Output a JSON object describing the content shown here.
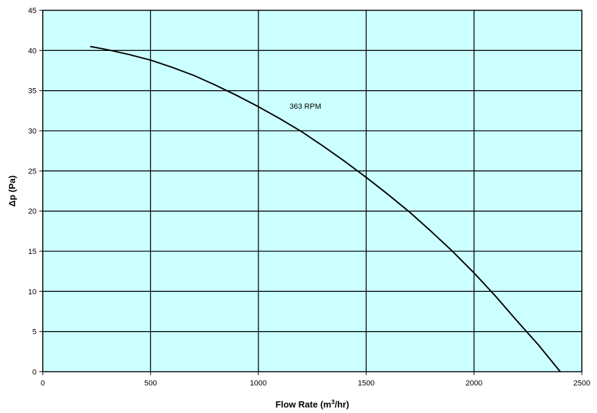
{
  "chart_data": {
    "type": "line",
    "xlabel": "Flow Rate (m³/hr)",
    "ylabel": "Δp (Pa)",
    "xlim": [
      0,
      2500
    ],
    "ylim": [
      0,
      45
    ],
    "x_ticks": [
      "0",
      "500",
      "1000",
      "1500",
      "2000",
      "2500"
    ],
    "y_ticks": [
      "0",
      "5",
      "10",
      "15",
      "20",
      "25",
      "30",
      "35",
      "40",
      "45"
    ],
    "grid": true,
    "annotation": "363 RPM",
    "series": [
      {
        "x": [
          220,
          300,
          400,
          500,
          600,
          700,
          800,
          900,
          1000,
          1100,
          1200,
          1300,
          1400,
          1500,
          1600,
          1700,
          1800,
          1900,
          2000,
          2100,
          2200,
          2300,
          2400
        ],
        "y": [
          40.5,
          40.1,
          39.5,
          38.8,
          37.9,
          36.9,
          35.7,
          34.4,
          33.0,
          31.5,
          29.9,
          28.1,
          26.2,
          24.2,
          22.1,
          19.9,
          17.5,
          15.0,
          12.3,
          9.4,
          6.3,
          3.3,
          0.0
        ],
        "color": "#000000"
      }
    ],
    "colors": {
      "plot_background": "#ccffff",
      "grid": "#000000",
      "line": "#000000"
    }
  }
}
